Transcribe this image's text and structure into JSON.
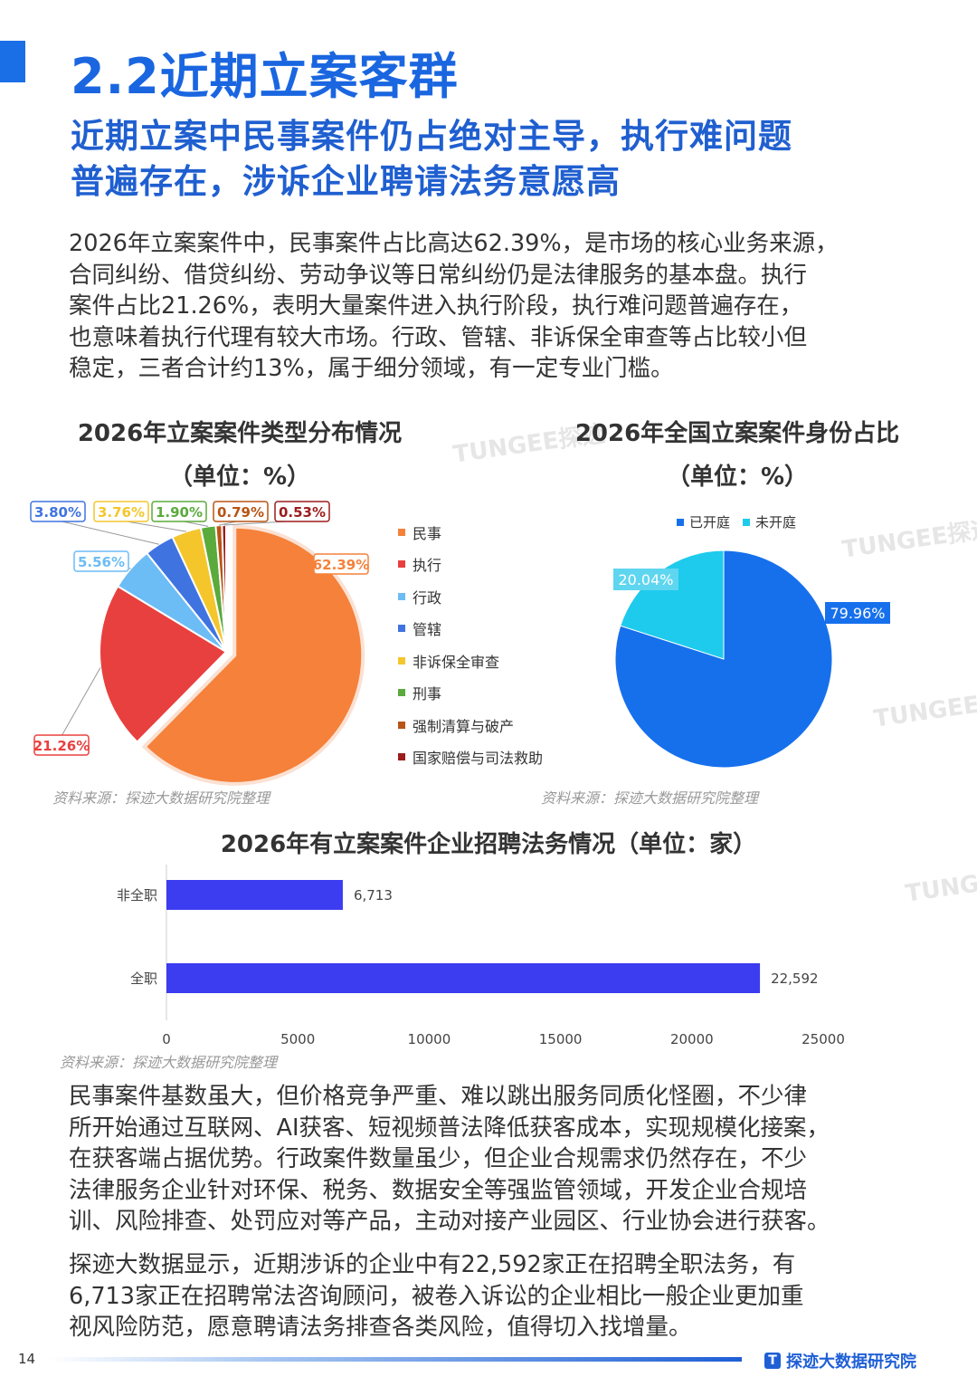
{
  "header": {
    "title": "2.2近期立案客群",
    "subtitle_lines": [
      "近期立案中民事案件仍占绝对主导，执行难问题",
      "普遍存在，涉诉企业聘请法务意愿高"
    ]
  },
  "intro_lines": [
    "2026年立案案件中，民事案件占比高达62.39%，是市场的核心业务来源，",
    "合同纠纷、借贷纠纷、劳动争议等日常纠纷仍是法律服务的基本盘。执行",
    "案件占比21.26%，表明大量案件进入执行阶段，执行难问题普遍存在，",
    "也意味着执行代理有较大市场。行政、管辖、非诉保全审查等占比较小但",
    "稳定，三者合计约13%，属于细分领域，有一定专业门槛。"
  ],
  "watermark": "TUNGEE探迹",
  "chart_data": [
    {
      "type": "pie",
      "title": "2026年立案案件类型分布情况",
      "subtitle": "（单位：%）",
      "legend_position": "right",
      "categories": [
        "民事",
        "执行",
        "行政",
        "管辖",
        "非诉保全审查",
        "刑事",
        "强制清算与破产",
        "国家赔偿与司法救助"
      ],
      "values": [
        62.39,
        21.26,
        5.56,
        3.8,
        3.76,
        1.9,
        0.79,
        0.53
      ],
      "labels": [
        "62.39%",
        "21.26%",
        "5.56%",
        "3.80%",
        "3.76%",
        "1.90%",
        "0.79%",
        "0.53%"
      ],
      "colors": [
        "#f5813a",
        "#e8403e",
        "#6cbcf5",
        "#3f73e0",
        "#f4c62c",
        "#5aaa3c",
        "#b85414",
        "#9c1c1c"
      ],
      "source": "资料来源：探迹大数据研究院整理"
    },
    {
      "type": "pie",
      "title": "2026年全国立案案件身份占比",
      "subtitle": "（单位：%）",
      "legend_position": "top",
      "categories": [
        "已开庭",
        "未开庭"
      ],
      "values": [
        79.96,
        20.04
      ],
      "labels": [
        "79.96%",
        "20.04%"
      ],
      "colors": [
        "#1670ec",
        "#1ecbed"
      ],
      "source": "资料来源：探迹大数据研究院整理"
    },
    {
      "type": "bar",
      "orientation": "horizontal",
      "title": "2026年有立案案件企业招聘法务情况（单位：家）",
      "categories": [
        "非全职",
        "全职"
      ],
      "values": [
        6713,
        22592
      ],
      "labels": [
        "6,713",
        "22,592"
      ],
      "xlim": [
        0,
        25000
      ],
      "xticks": [
        "0",
        "5000",
        "10000",
        "15000",
        "20000",
        "25000"
      ],
      "color": "#3c3cf0",
      "source": "资料来源：探迹大数据研究院整理"
    }
  ],
  "para2_lines": [
    "民事案件基数虽大，但价格竞争严重、难以跳出服务同质化怪圈，不少律",
    "所开始通过互联网、AI获客、短视频普法降低获客成本，实现规模化接案，",
    "在获客端占据优势。行政案件数量虽少，但企业合规需求仍然存在，不少",
    "法律服务企业针对环保、税务、数据安全等强监管领域，开发企业合规培",
    "训、风险排查、处罚应对等产品，主动对接产业园区、行业协会进行获客。"
  ],
  "para3_lines": [
    "探迹大数据显示，近期涉诉的企业中有22,592家正在招聘全职法务，有",
    "6,713家正在招聘常法咨询顾问，被卷入诉讼的企业相比一般企业更加重",
    "视风险防范，愿意聘请法务排查各类风险，值得切入找增量。"
  ],
  "footer": {
    "page_number": "14",
    "brand": "探迹大数据研究院"
  }
}
